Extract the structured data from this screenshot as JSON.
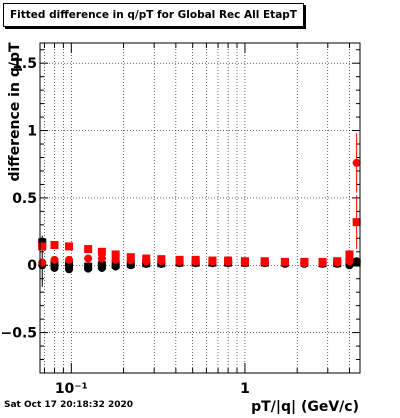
{
  "title": "Fitted difference in q/pT for Global Rec All EtapT",
  "timestamp": "Sat Oct 17 20:18:32 2020",
  "chart_data": {
    "type": "scatter",
    "title": "Fitted difference in q/pT for Global Rec All EtapT",
    "xlabel": "pT/|q| (GeV/c)",
    "ylabel": "difference in q/pT",
    "xscale": "log",
    "xlim": [
      0.066,
      4.6
    ],
    "ylim": [
      -0.8,
      1.65
    ],
    "xticks": [
      {
        "value": 0.1,
        "label": "10⁻¹"
      },
      {
        "value": 1,
        "label": "1"
      }
    ],
    "yticks": [
      {
        "value": -0.5,
        "label": "−0.5"
      },
      {
        "value": 0,
        "label": "0"
      },
      {
        "value": 0.5,
        "label": "0.5"
      },
      {
        "value": 1,
        "label": "1"
      },
      {
        "value": 1.5,
        "label": "1.5"
      }
    ],
    "grid": true,
    "series": [
      {
        "color": "#000000",
        "marker": "circle",
        "x": [
          0.068,
          0.08,
          0.097,
          0.125,
          0.15,
          0.18,
          0.22,
          0.27,
          0.33,
          0.42,
          0.52,
          0.65,
          0.8,
          1.0,
          1.3,
          1.7,
          2.2,
          2.8,
          3.4,
          4.0,
          4.4
        ],
        "y": [
          0.0,
          -0.02,
          -0.03,
          -0.025,
          -0.02,
          -0.01,
          0.0,
          0.01,
          0.01,
          0.015,
          0.015,
          0.015,
          0.015,
          0.015,
          0.015,
          0.01,
          0.01,
          0.01,
          0.01,
          0.0,
          0.03
        ],
        "err": [
          0.16,
          0.03,
          0.02,
          0.015,
          0.012,
          0.01,
          0.008,
          0.006,
          0.006,
          0.005,
          0.005,
          0.005,
          0.005,
          0.005,
          0.005,
          0.005,
          0.005,
          0.006,
          0.008,
          0.012,
          0.015
        ]
      },
      {
        "color": "#000000",
        "marker": "square",
        "x": [
          0.068,
          0.08,
          0.097,
          0.125,
          0.15,
          0.18,
          0.22,
          0.27,
          0.33,
          0.42,
          0.52,
          0.65,
          0.8,
          1.0,
          1.3,
          1.7,
          2.2,
          2.8,
          3.4,
          4.0,
          4.4
        ],
        "y": [
          0.17,
          0.01,
          0.0,
          -0.01,
          0.0,
          0.005,
          0.01,
          0.015,
          0.015,
          0.02,
          0.02,
          0.02,
          0.02,
          0.02,
          0.02,
          0.02,
          0.02,
          0.015,
          0.015,
          0.02,
          0.02
        ],
        "err": [
          0.05,
          0.03,
          0.02,
          0.015,
          0.012,
          0.01,
          0.008,
          0.006,
          0.006,
          0.005,
          0.005,
          0.005,
          0.005,
          0.005,
          0.005,
          0.005,
          0.005,
          0.006,
          0.008,
          0.01,
          0.012
        ]
      },
      {
        "color": "#ff0000",
        "marker": "circle",
        "x": [
          0.068,
          0.08,
          0.097,
          0.125,
          0.15,
          0.18,
          0.22,
          0.27,
          0.33,
          0.42,
          0.52,
          0.65,
          0.8,
          1.0,
          1.3,
          1.7,
          2.2,
          2.8,
          3.4,
          4.0,
          4.4
        ],
        "y": [
          0.02,
          0.04,
          0.04,
          0.05,
          0.05,
          0.04,
          0.035,
          0.03,
          0.03,
          0.025,
          0.025,
          0.025,
          0.025,
          0.02,
          0.02,
          0.02,
          0.015,
          0.015,
          0.02,
          0.03,
          0.76
        ],
        "err": [
          0.03,
          0.025,
          0.02,
          0.015,
          0.012,
          0.01,
          0.008,
          0.006,
          0.006,
          0.005,
          0.005,
          0.005,
          0.005,
          0.005,
          0.005,
          0.005,
          0.005,
          0.006,
          0.01,
          0.03,
          0.22
        ]
      },
      {
        "color": "#ff0000",
        "marker": "square",
        "x": [
          0.068,
          0.08,
          0.097,
          0.125,
          0.15,
          0.18,
          0.22,
          0.27,
          0.33,
          0.42,
          0.52,
          0.65,
          0.8,
          1.0,
          1.3,
          1.7,
          2.2,
          2.8,
          3.4,
          4.0,
          4.4
        ],
        "y": [
          0.14,
          0.15,
          0.14,
          0.12,
          0.1,
          0.08,
          0.06,
          0.05,
          0.045,
          0.04,
          0.04,
          0.035,
          0.035,
          0.03,
          0.03,
          0.025,
          0.025,
          0.025,
          0.03,
          0.08,
          0.32
        ],
        "err": [
          0.03,
          0.025,
          0.02,
          0.015,
          0.012,
          0.01,
          0.008,
          0.006,
          0.006,
          0.005,
          0.005,
          0.005,
          0.005,
          0.005,
          0.005,
          0.005,
          0.005,
          0.006,
          0.01,
          0.03,
          0.2
        ]
      }
    ]
  }
}
